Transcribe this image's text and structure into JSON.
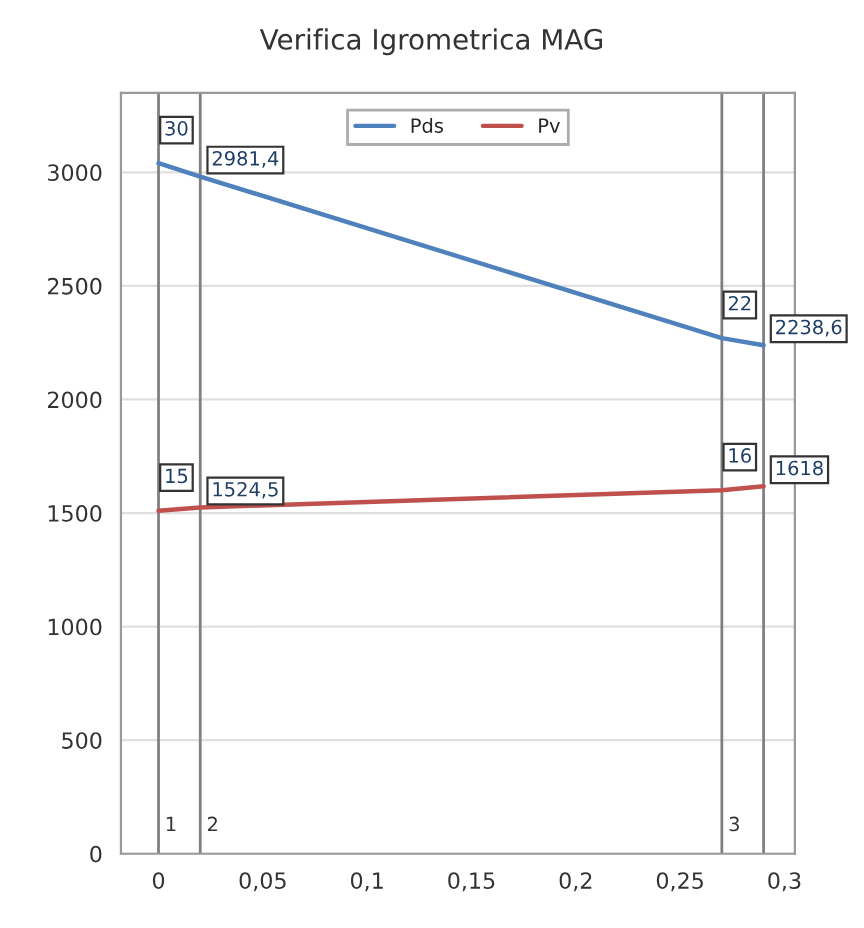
{
  "chart_data": {
    "type": "line",
    "title": "Verifica Igrometrica MAG",
    "series": [
      {
        "name": "Pds",
        "color": "#4f81bd",
        "x": [
          0,
          0.02,
          0.27,
          0.29
        ],
        "values": [
          3040,
          2981.4,
          2270,
          2238.6
        ]
      },
      {
        "name": "Pv",
        "color": "#c0504d",
        "x": [
          0,
          0.02,
          0.27,
          0.29
        ],
        "values": [
          1510,
          1524.5,
          1600,
          1618
        ]
      }
    ],
    "xlim": [
      -0.018,
      0.305
    ],
    "xticks": [
      {
        "value": 0,
        "label": "0"
      },
      {
        "value": 0.05,
        "label": "0,05"
      },
      {
        "value": 0.1,
        "label": "0,1"
      },
      {
        "value": 0.15,
        "label": "0,15"
      },
      {
        "value": 0.2,
        "label": "0,2"
      },
      {
        "value": 0.25,
        "label": "0,25"
      },
      {
        "value": 0.3,
        "label": "0,3"
      }
    ],
    "ylim": [
      0,
      3350
    ],
    "yticks": [
      0,
      500,
      1000,
      1500,
      2000,
      2500,
      3000
    ],
    "ref_lines": [
      {
        "axis": "x",
        "value": 0,
        "color": "#808080"
      },
      {
        "axis": "x",
        "value": 0.02,
        "color": "#808080"
      },
      {
        "axis": "x",
        "value": 0.27,
        "color": "#808080"
      },
      {
        "axis": "x",
        "value": 0.29,
        "color": "#808080"
      }
    ],
    "annotations": [
      {
        "text": "30",
        "x": 0,
        "y": 3040
      },
      {
        "text": "2981,4",
        "x": 0.02,
        "y": 2981.4
      },
      {
        "text": "22",
        "x": 0.27,
        "y": 2270
      },
      {
        "text": "2238,6",
        "x": 0.29,
        "y": 2238.6
      },
      {
        "text": "15",
        "x": 0,
        "y": 1510
      },
      {
        "text": "1524,5",
        "x": 0.02,
        "y": 1524.5
      },
      {
        "text": "16",
        "x": 0.27,
        "y": 1600
      },
      {
        "text": "1618",
        "x": 0.29,
        "y": 1618
      },
      {
        "text": "1",
        "x": 0.003,
        "y": 100
      },
      {
        "text": "2",
        "x": 0.023,
        "y": 100
      },
      {
        "text": "3",
        "x": 0.273,
        "y": 100
      }
    ],
    "grid": "y",
    "legend": "top",
    "marker": "none",
    "line_style": "solid"
  }
}
